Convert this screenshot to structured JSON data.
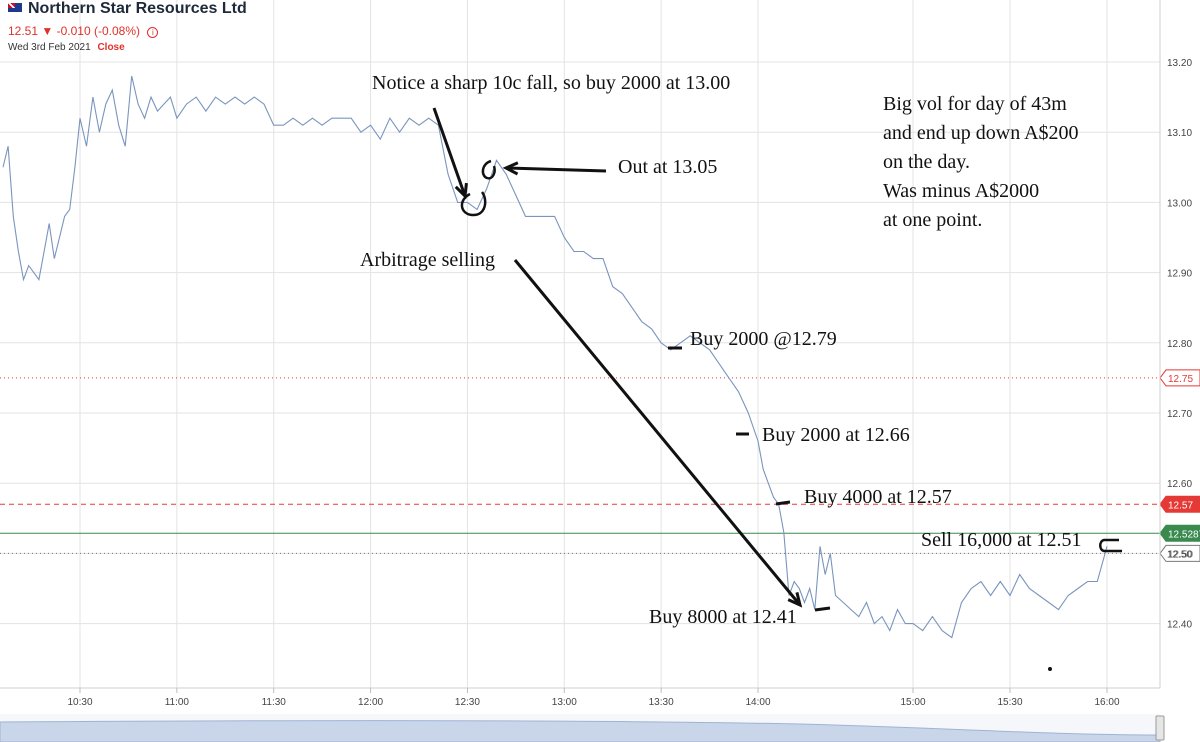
{
  "header": {
    "company": "Northern Star Resources Ltd",
    "price": "12.51",
    "change": "-0.010 (-0.08%)",
    "date": "Wed 3rd Feb 2021",
    "status": "Close",
    "flag_icon": "australia-flag-icon"
  },
  "colors": {
    "price_line": "#7a95bd",
    "grid": "#e3e3e3",
    "red_line": "#e53935",
    "green_line": "#3a8a4f",
    "annotation": "#111111"
  },
  "chart_data": {
    "type": "line",
    "title": "Northern Star Resources Ltd",
    "xlabel": "",
    "ylabel": "",
    "ylim": [
      12.31,
      13.27
    ],
    "xlim": [
      "10:00",
      "16:17"
    ],
    "grid": true,
    "x_ticks": [
      "10:30",
      "11:00",
      "11:30",
      "12:00",
      "12:30",
      "13:00",
      "13:30",
      "14:00",
      "15:00",
      "15:30",
      "16:00"
    ],
    "y_ticks": [
      "13.20",
      "13.10",
      "13.00",
      "12.90",
      "12.80",
      "12.70",
      "12.60",
      "12.50",
      "12.40"
    ],
    "reference_lines": [
      {
        "value": 12.75,
        "label": "12.75",
        "style": "dotted",
        "color": "red"
      },
      {
        "value": 12.57,
        "label": "12.57",
        "style": "dashed",
        "color": "red"
      },
      {
        "value": 12.5287,
        "label": "12.5287",
        "style": "solid",
        "color": "green"
      },
      {
        "value": 12.5,
        "label": "12.50",
        "style": "dotted",
        "color": "gray"
      }
    ],
    "series": [
      {
        "x": [
          "10:00",
          "10:02",
          "10:04",
          "10:06",
          "10:08",
          "10:10",
          "10:12",
          "10:14",
          "10:16",
          "10:18",
          "10:20",
          "10:22",
          "10:24",
          "10:26",
          "10:28",
          "10:30",
          "10:32",
          "10:34",
          "10:36",
          "10:38",
          "10:40",
          "10:42",
          "10:44",
          "10:46",
          "10:48",
          "10:50",
          "10:52",
          "10:54",
          "10:56",
          "10:58",
          "11:00",
          "11:03",
          "11:06",
          "11:09",
          "11:12",
          "11:15",
          "11:18",
          "11:21",
          "11:24",
          "11:27",
          "11:30",
          "11:33",
          "11:36",
          "11:39",
          "11:42",
          "11:45",
          "11:48",
          "11:51",
          "11:54",
          "11:57",
          "12:00",
          "12:03",
          "12:06",
          "12:09",
          "12:12",
          "12:15",
          "12:18",
          "12:21",
          "12:24",
          "12:27",
          "12:30",
          "12:33",
          "12:36",
          "12:39",
          "12:42",
          "12:45",
          "12:48",
          "12:51",
          "12:54",
          "12:57",
          "13:00",
          "13:03",
          "13:06",
          "13:09",
          "13:12",
          "13:15",
          "13:18",
          "13:21",
          "13:24",
          "13:27",
          "13:30",
          "13:33",
          "13:36",
          "13:39",
          "13:42",
          "13:45",
          "13:48",
          "13:51",
          "13:54",
          "13:57",
          "14:00",
          "14:02",
          "14:04",
          "14:06",
          "14:08",
          "14:10",
          "14:12",
          "14:14",
          "14:16",
          "14:18",
          "14:20",
          "14:22",
          "14:24",
          "14:26",
          "14:28",
          "14:30",
          "14:33",
          "14:36",
          "14:39",
          "14:42",
          "14:45",
          "14:48",
          "14:51",
          "14:54",
          "14:57",
          "15:00",
          "15:03",
          "15:06",
          "15:09",
          "15:12",
          "15:15",
          "15:18",
          "15:21",
          "15:24",
          "15:27",
          "15:30",
          "15:33",
          "15:36",
          "15:39",
          "15:42",
          "15:45",
          "15:48",
          "15:51",
          "15:54",
          "15:57",
          "16:00"
        ],
        "y": [
          13.05,
          13.08,
          12.98,
          12.93,
          12.89,
          12.91,
          12.9,
          12.89,
          12.93,
          12.97,
          12.92,
          12.95,
          12.98,
          12.99,
          13.05,
          13.12,
          13.08,
          13.15,
          13.1,
          13.14,
          13.16,
          13.11,
          13.08,
          13.18,
          13.14,
          13.12,
          13.15,
          13.13,
          13.14,
          13.15,
          13.12,
          13.14,
          13.15,
          13.13,
          13.15,
          13.14,
          13.15,
          13.14,
          13.15,
          13.14,
          13.11,
          13.11,
          13.12,
          13.11,
          13.12,
          13.11,
          13.12,
          13.12,
          13.12,
          13.1,
          13.11,
          13.09,
          13.12,
          13.1,
          13.12,
          13.11,
          13.12,
          13.11,
          13.04,
          13.0,
          13.0,
          12.99,
          13.02,
          13.06,
          13.04,
          13.01,
          12.98,
          12.98,
          12.98,
          12.98,
          12.95,
          12.93,
          12.93,
          12.92,
          12.92,
          12.88,
          12.87,
          12.85,
          12.83,
          12.82,
          12.8,
          12.79,
          12.8,
          12.81,
          12.8,
          12.79,
          12.77,
          12.75,
          12.73,
          12.7,
          12.66,
          12.62,
          12.6,
          12.58,
          12.57,
          12.53,
          12.44,
          12.46,
          12.45,
          12.43,
          12.45,
          12.42,
          12.51,
          12.47,
          12.5,
          12.44,
          12.43,
          12.42,
          12.41,
          12.43,
          12.4,
          12.41,
          12.39,
          12.42,
          12.4,
          12.4,
          12.39,
          12.41,
          12.39,
          12.38,
          12.43,
          12.45,
          12.46,
          12.44,
          12.46,
          12.44,
          12.47,
          12.45,
          12.44,
          12.43,
          12.42,
          12.44,
          12.45,
          12.46,
          12.46,
          12.51
        ],
        "color": "#7a95bd"
      }
    ],
    "annotations": [
      "Notice a sharp 10c fall, so buy 2000 at 13.00",
      "Out at 13.05",
      "Arbitrage selling",
      "Buy 2000 @12.79",
      "Buy 2000 at 12.66",
      "Buy 4000 at 12.57",
      "Sell 16,000 at 12.51",
      "Buy 8000 at 12.41"
    ],
    "note_lines": [
      "Big vol for day of 43m",
      "and end up down A$200",
      "on the day.",
      "Was minus A$2000",
      "at one point."
    ]
  }
}
